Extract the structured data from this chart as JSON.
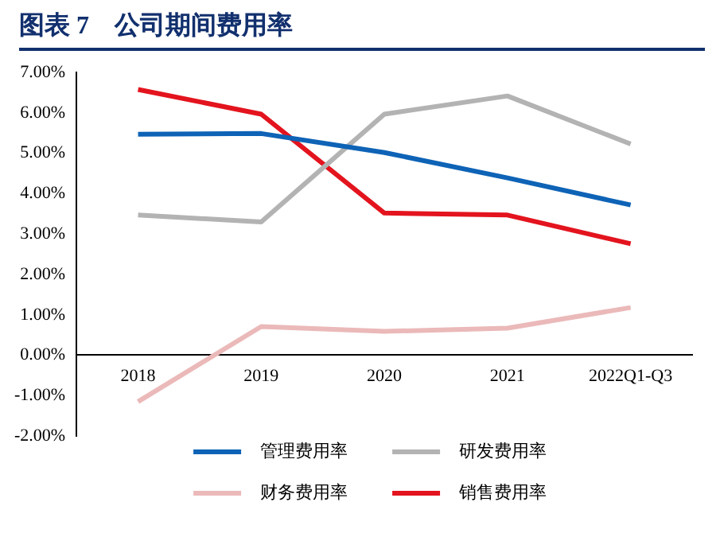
{
  "chart_data": {
    "type": "line",
    "title": "图表 7　公司期间费用率",
    "categories": [
      "2018",
      "2019",
      "2020",
      "2021",
      "2022Q1-Q3"
    ],
    "series": [
      {
        "name": "管理费用率",
        "color": "#0e63b6",
        "values": [
          5.47,
          5.49,
          5.02,
          4.39,
          3.72
        ]
      },
      {
        "name": "研发费用率",
        "color": "#b3b3b3",
        "values": [
          3.47,
          3.3,
          5.97,
          6.42,
          5.23
        ]
      },
      {
        "name": "财务费用率",
        "color": "#ebb9b9",
        "values": [
          -1.15,
          0.71,
          0.59,
          0.67,
          1.18
        ]
      },
      {
        "name": "销售费用率",
        "color": "#e3141e",
        "values": [
          6.58,
          5.97,
          3.52,
          3.47,
          2.76
        ]
      }
    ],
    "ylim": [
      -2,
      7
    ],
    "yticks": [
      {
        "value": -2,
        "label": "-2.00%"
      },
      {
        "value": -1,
        "label": "-1.00%"
      },
      {
        "value": 0,
        "label": "0.00%"
      },
      {
        "value": 1,
        "label": "1.00%"
      },
      {
        "value": 2,
        "label": "2.00%"
      },
      {
        "value": 3,
        "label": "3.00%"
      },
      {
        "value": 4,
        "label": "4.00%"
      },
      {
        "value": 5,
        "label": "5.00%"
      },
      {
        "value": 6,
        "label": "6.00%"
      },
      {
        "value": 7,
        "label": "7.00%"
      }
    ],
    "grid": false,
    "legend": "bottom",
    "marker": "none",
    "line_style": "solid"
  }
}
